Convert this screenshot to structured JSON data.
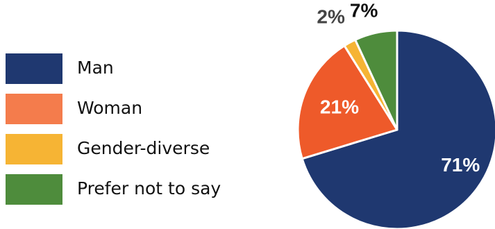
{
  "chart_data": {
    "type": "pie",
    "categories": [
      "Man",
      "Woman",
      "Gender-diverse",
      "Prefer not to say"
    ],
    "values": [
      71,
      21,
      2,
      7
    ],
    "labels": [
      "71%",
      "21%",
      "2%",
      "7%"
    ],
    "colors": [
      "#1f3870",
      "#ee5a2a",
      "#f6b434",
      "#4e8c3c"
    ],
    "legend_swatch_colors": [
      "#1f3870",
      "#f47c4c",
      "#f6b434",
      "#4e8c3c"
    ],
    "legend_position": "left",
    "title": ""
  }
}
